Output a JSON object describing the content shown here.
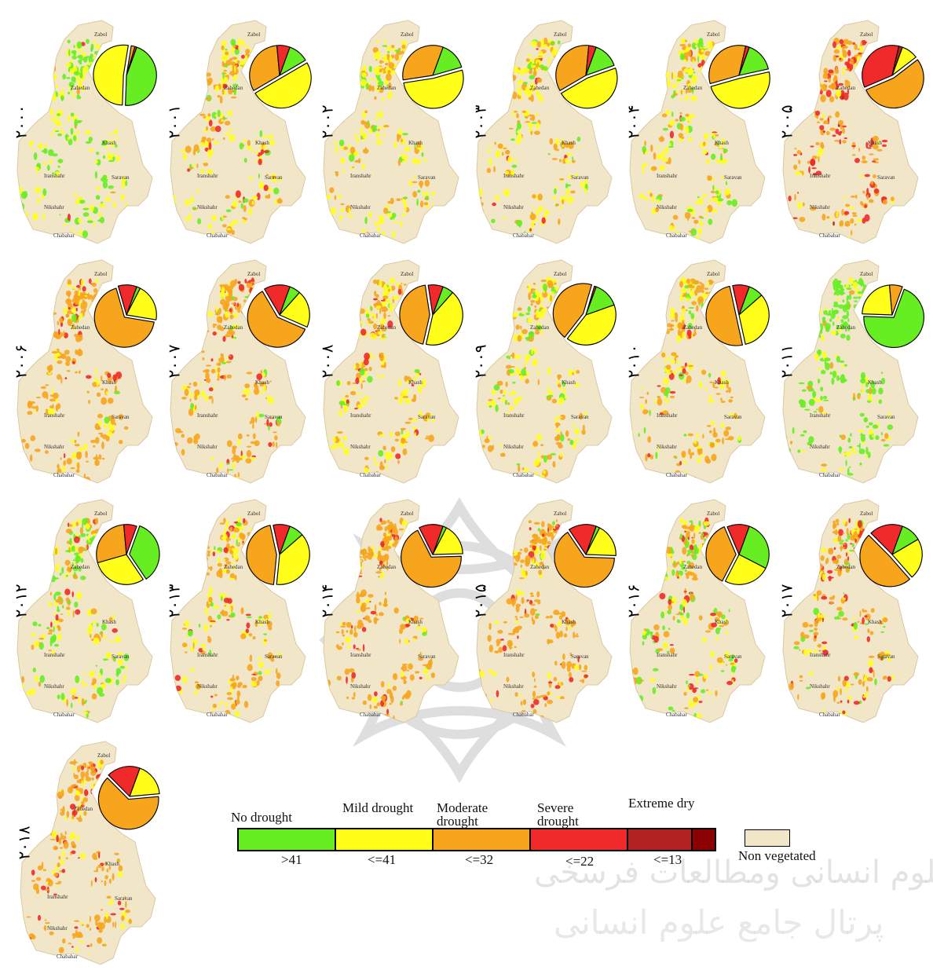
{
  "colors": {
    "no_drought": "#66ee22",
    "mild_drought": "#ffff1a",
    "moderate_drought": "#f7a51d",
    "severe_drought": "#f02a2a",
    "extreme_dry": "#b22222",
    "non_vegetated": "#f2e6c8"
  },
  "cities": {
    "zabol": "Zabol",
    "zahedan": "Zahedan",
    "khash": "Khash",
    "iranshahr": "Iranshahr",
    "saravan": "Saravan",
    "nikshahr": "Nikshahr",
    "chabahar": "Chabahar"
  },
  "panels": [
    {
      "year": "۲۰۰۰",
      "no": 45,
      "mild": 52,
      "mod": 2,
      "sev": 1
    },
    {
      "year": "۲۰۰۱",
      "no": 11,
      "mild": 50,
      "mod": 32,
      "sev": 7
    },
    {
      "year": "۲۰۰۲",
      "no": 15,
      "mild": 52,
      "mod": 33,
      "sev": 0
    },
    {
      "year": "۲۰۰۳",
      "no": 14,
      "mild": 47,
      "mod": 35,
      "sev": 4
    },
    {
      "year": "۲۰۰۴",
      "no": 16,
      "mild": 49,
      "mod": 33,
      "sev": 2
    },
    {
      "year": "۲۰۰۵",
      "no": 0,
      "mild": 9,
      "mod": 54,
      "sev": 35,
      "ext": 2
    },
    {
      "year": "۲۰۰۶",
      "no": 2,
      "mild": 20,
      "mod": 68,
      "sev": 10
    },
    {
      "year": "۲۰۰۷",
      "no": 6,
      "mild": 20,
      "mod": 60,
      "sev": 14
    },
    {
      "year": "۲۰۰۸",
      "no": 6,
      "mild": 42,
      "mod": 44,
      "sev": 8
    },
    {
      "year": "۲۰۰۹",
      "no": 14,
      "mild": 41,
      "mod": 44,
      "sev": 1
    },
    {
      "year": "۲۰۱۰",
      "no": 8,
      "mild": 33,
      "mod": 50,
      "sev": 9
    },
    {
      "year": "۲۰۱۱",
      "no": 70,
      "mild": 23,
      "mod": 7,
      "sev": 0
    },
    {
      "year": "۲۰۱۲",
      "no": 35,
      "mild": 30,
      "mod": 28,
      "sev": 7
    },
    {
      "year": "۲۰۱۳",
      "no": 8,
      "mild": 38,
      "mod": 45,
      "sev": 9
    },
    {
      "year": "۲۰۱۴",
      "no": 2,
      "mild": 17,
      "mod": 68,
      "sev": 13
    },
    {
      "year": "۲۰۱۵",
      "no": 2,
      "mild": 18,
      "mod": 65,
      "sev": 15
    },
    {
      "year": "۲۰۱۶",
      "no": 27,
      "mild": 25,
      "mod": 36,
      "sev": 12
    },
    {
      "year": "۲۰۱۷",
      "no": 11,
      "mild": 22,
      "mod": 49,
      "sev": 18
    },
    {
      "year": "۲۰۱۸",
      "no": 0,
      "mild": 18,
      "mod": 64,
      "sev": 18
    }
  ],
  "legend": {
    "classes": [
      "No drought",
      "Mild drought",
      "Moderate drought",
      "Severe drought",
      "Extreme dry"
    ],
    "thresholds": [
      ">41",
      "<=41",
      "<=32",
      "<=22",
      "<=13"
    ],
    "non_vegetated": "Non vegetated"
  },
  "watermark": {
    "line1": "پرتال جامع علوم انسانی",
    "line2": "ثروبشگاه علوم انسانی ومطالعات فرسخی"
  }
}
